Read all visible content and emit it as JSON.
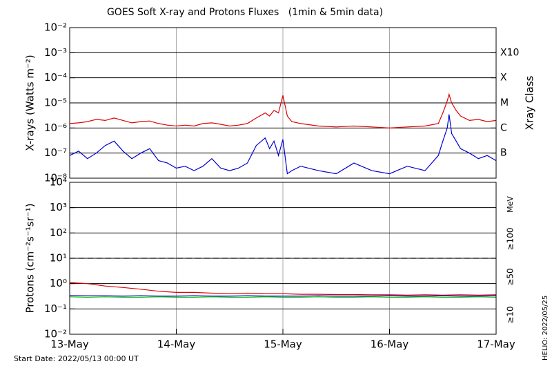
{
  "chart_data": [
    {
      "type": "line",
      "title": "GOES Soft X-ray and Protons Fluxes   (1min & 5min data)",
      "ylabel": "X-rays (Watts m⁻²)",
      "y2label": "Xray Class",
      "log_y": true,
      "grid": true,
      "xlim": [
        0,
        96
      ],
      "ylim": [
        1e-08,
        0.01
      ],
      "yticks": [
        {
          "value": 1e-08,
          "label": "10⁻⁸"
        },
        {
          "value": 1e-07,
          "label": "10⁻⁷"
        },
        {
          "value": 1e-06,
          "label": "10⁻⁶"
        },
        {
          "value": 1e-05,
          "label": "10⁻⁵"
        },
        {
          "value": 0.0001,
          "label": "10⁻⁴"
        },
        {
          "value": 0.001,
          "label": "10⁻³"
        },
        {
          "value": 0.01,
          "label": "10⁻²"
        }
      ],
      "y2lim": [
        1e-08,
        0.01
      ],
      "y2ticks": [
        {
          "value": 1e-07,
          "label": "B"
        },
        {
          "value": 1e-06,
          "label": "C"
        },
        {
          "value": 1e-05,
          "label": "M"
        },
        {
          "value": 0.0001,
          "label": "X"
        },
        {
          "value": 0.001,
          "label": "X10"
        }
      ],
      "x": [
        0,
        2,
        4,
        6,
        8,
        10,
        12,
        14,
        16,
        18,
        20,
        22,
        24,
        26,
        28,
        30,
        32,
        34,
        36,
        38,
        40,
        42,
        44,
        45,
        46,
        47,
        48,
        49,
        50,
        52,
        56,
        60,
        64,
        68,
        72,
        76,
        80,
        83,
        84,
        85,
        85.4,
        86,
        87,
        88,
        90,
        92,
        94,
        96
      ],
      "series": [
        {
          "color": "#e00000",
          "values": [
            1.5e-06,
            1.6e-06,
            1.8e-06,
            2.2e-06,
            2e-06,
            2.5e-06,
            2e-06,
            1.6e-06,
            1.8e-06,
            1.9e-06,
            1.5e-06,
            1.3e-06,
            1.2e-06,
            1.3e-06,
            1.2e-06,
            1.5e-06,
            1.6e-06,
            1.4e-06,
            1.2e-06,
            1.3e-06,
            1.5e-06,
            2.5e-06,
            4e-06,
            3e-06,
            5e-06,
            4e-06,
            2e-05,
            3e-06,
            1.8e-06,
            1.5e-06,
            1.2e-06,
            1.1e-06,
            1.2e-06,
            1.1e-06,
            1e-06,
            1.1e-06,
            1.2e-06,
            1.5e-06,
            4e-06,
            1.2e-05,
            2.2e-05,
            1e-05,
            5e-06,
            3e-06,
            2e-06,
            2.2e-06,
            1.8e-06,
            2e-06
          ]
        },
        {
          "color": "#0000d0",
          "values": [
            8e-08,
            1.2e-07,
            6e-08,
            1e-07,
            2e-07,
            3e-07,
            1.2e-07,
            6e-08,
            1e-07,
            1.5e-07,
            5e-08,
            4e-08,
            2.5e-08,
            3e-08,
            2e-08,
            3e-08,
            6e-08,
            2.5e-08,
            2e-08,
            2.5e-08,
            4e-08,
            2e-07,
            4e-07,
            1.5e-07,
            3e-07,
            8e-08,
            3.5e-07,
            1.5e-08,
            2e-08,
            3e-08,
            2e-08,
            1.5e-08,
            4e-08,
            2e-08,
            1.5e-08,
            3e-08,
            2e-08,
            8e-08,
            3e-07,
            1e-06,
            3.5e-06,
            6e-07,
            3e-07,
            1.5e-07,
            1e-07,
            6e-08,
            8e-08,
            5e-08
          ]
        }
      ]
    },
    {
      "type": "line",
      "ylabel": "Protons (cm⁻²s⁻¹sr⁻¹)",
      "legend_title": "MeV",
      "log_y": true,
      "grid": true,
      "threshold": 10,
      "xlim": [
        0,
        96
      ],
      "xticks": [
        {
          "value": 0,
          "label": "13-May"
        },
        {
          "value": 24,
          "label": "14-May"
        },
        {
          "value": 48,
          "label": "15-May"
        },
        {
          "value": 72,
          "label": "16-May"
        },
        {
          "value": 96,
          "label": "17-May"
        }
      ],
      "ylim": [
        0.01,
        10000
      ],
      "yticks": [
        {
          "value": 0.01,
          "label": "10⁻²"
        },
        {
          "value": 0.1,
          "label": "10⁻¹"
        },
        {
          "value": 1,
          "label": "10⁰"
        },
        {
          "value": 10,
          "label": "10¹"
        },
        {
          "value": 100,
          "label": "10²"
        },
        {
          "value": 1000,
          "label": "10³"
        },
        {
          "value": 10000,
          "label": "10⁴"
        }
      ],
      "x": [
        0,
        4,
        8,
        12,
        16,
        20,
        24,
        28,
        32,
        36,
        40,
        44,
        48,
        52,
        56,
        60,
        64,
        68,
        72,
        76,
        80,
        84,
        88,
        92,
        96
      ],
      "series": [
        {
          "name": "≥10",
          "color": "#e00000",
          "values": [
            1.1,
            1.0,
            0.8,
            0.7,
            0.6,
            0.5,
            0.45,
            0.45,
            0.42,
            0.4,
            0.42,
            0.4,
            0.4,
            0.38,
            0.38,
            0.37,
            0.37,
            0.36,
            0.36,
            0.35,
            0.36,
            0.35,
            0.36,
            0.35,
            0.36
          ]
        },
        {
          "name": "≥50",
          "color": "#0000d0",
          "values": [
            0.34,
            0.33,
            0.33,
            0.32,
            0.33,
            0.32,
            0.32,
            0.33,
            0.32,
            0.32,
            0.33,
            0.32,
            0.32,
            0.32,
            0.33,
            0.32,
            0.32,
            0.32,
            0.33,
            0.32,
            0.32,
            0.33,
            0.32,
            0.32,
            0.33
          ]
        },
        {
          "name": "≥100",
          "color": "#00c000",
          "values": [
            0.3,
            0.29,
            0.3,
            0.29,
            0.29,
            0.3,
            0.29,
            0.29,
            0.3,
            0.29,
            0.29,
            0.3,
            0.29,
            0.29,
            0.3,
            0.29,
            0.29,
            0.3,
            0.29,
            0.29,
            0.3,
            0.29,
            0.29,
            0.3,
            0.29
          ]
        }
      ]
    }
  ],
  "footer": {
    "start_date": "Start Date: 2022/05/13 00:00 UT",
    "helio": "HELIO: 2022/05/25"
  }
}
